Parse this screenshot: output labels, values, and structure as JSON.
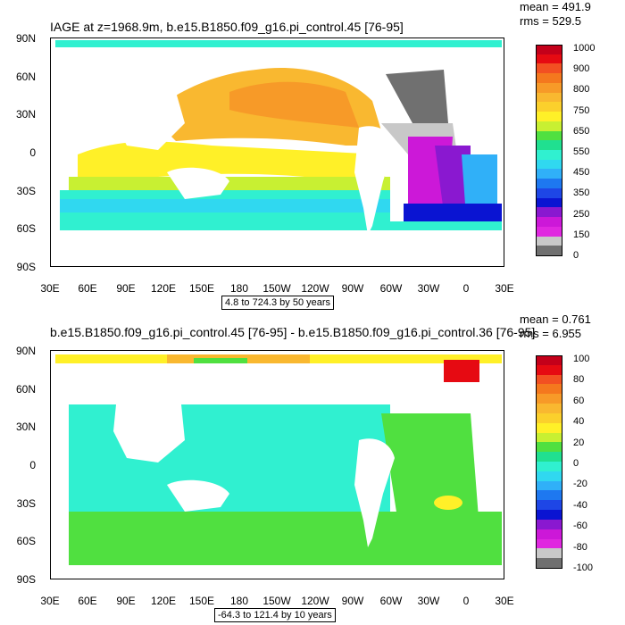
{
  "panels": [
    {
      "title": "IAGE at z=1968.9m, b.e15.B1850.f09_g16.pi_control.45 [76-95]",
      "mean": "mean = 491.9",
      "rms": "rms = 529.5",
      "range": "4.8 to 724.3 by 50 years",
      "lat_labels": [
        "90N",
        "60N",
        "30N",
        "0",
        "30S",
        "60S",
        "90S"
      ],
      "lon_labels": [
        "30E",
        "60E",
        "90E",
        "120E",
        "150E",
        "180",
        "150W",
        "120W",
        "90W",
        "60W",
        "30W",
        "0",
        "30E"
      ],
      "colorbar": {
        "labels": [
          "1000",
          "900",
          "800",
          "750",
          "650",
          "550",
          "450",
          "350",
          "250",
          "150",
          "0"
        ],
        "colors": [
          "#c4001a",
          "#e60a12",
          "#f25022",
          "#f4781e",
          "#f79a28",
          "#f9b830",
          "#fbd02c",
          "#fff028",
          "#c8f032",
          "#50e040",
          "#20e090",
          "#30f0d0",
          "#30d8f0",
          "#30b0f8",
          "#1e78f0",
          "#1e46e6",
          "#0a14d2",
          "#8a18d0",
          "#cc18d8",
          "#e028e0",
          "#c8c8c8",
          "#707070"
        ]
      },
      "chart_data": {
        "type": "map",
        "variable": "IAGE",
        "depth": "z=1968.9m",
        "case": "b.e15.B1850.f09_g16.pi_control.45",
        "years": "76-95",
        "mean": 491.9,
        "rms": 529.5,
        "contour_min": 4.8,
        "contour_max": 724.3,
        "contour_interval": 50,
        "units": "years",
        "lat_range": [
          -90,
          90
        ],
        "lon_range": [
          30,
          390
        ]
      }
    },
    {
      "title": "b.e15.B1850.f09_g16.pi_control.45 [76-95] - b.e15.B1850.f09_g16.pi_control.36 [76-95]",
      "mean": "mean = 0.761",
      "rms": "rms = 6.955",
      "range": "-64.3 to 121.4 by 10 years",
      "lat_labels": [
        "90N",
        "60N",
        "30N",
        "0",
        "30S",
        "60S",
        "90S"
      ],
      "lon_labels": [
        "30E",
        "60E",
        "90E",
        "120E",
        "150E",
        "180",
        "150W",
        "120W",
        "90W",
        "60W",
        "30W",
        "0",
        "30E"
      ],
      "colorbar": {
        "labels": [
          "100",
          "80",
          "60",
          "40",
          "20",
          "0",
          "-20",
          "-40",
          "-60",
          "-80",
          "-100"
        ],
        "colors": [
          "#c4001a",
          "#e60a12",
          "#f25022",
          "#f4781e",
          "#f79a28",
          "#f9b830",
          "#fbd02c",
          "#fff028",
          "#c8f032",
          "#50e040",
          "#20e090",
          "#30f0d0",
          "#30d8f0",
          "#30b0f8",
          "#1e78f0",
          "#1e46e6",
          "#0a14d2",
          "#8a18d0",
          "#cc18d8",
          "#e028e0",
          "#c8c8c8",
          "#707070"
        ]
      },
      "chart_data": {
        "type": "map",
        "variable": "IAGE difference",
        "case_a": "b.e15.B1850.f09_g16.pi_control.45",
        "case_b": "b.e15.B1850.f09_g16.pi_control.36",
        "years": "76-95",
        "mean": 0.761,
        "rms": 6.955,
        "contour_min": -64.3,
        "contour_max": 121.4,
        "contour_interval": 10,
        "units": "years",
        "lat_range": [
          -90,
          90
        ],
        "lon_range": [
          30,
          390
        ]
      }
    }
  ]
}
